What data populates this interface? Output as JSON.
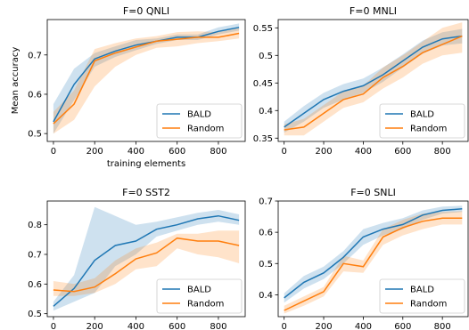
{
  "chart_data": [
    {
      "type": "line",
      "title": "F=0 QNLI",
      "xlabel": "training elements",
      "ylabel": "Mean accuracy",
      "xlim": [
        -30,
        930
      ],
      "ylim": [
        0.48,
        0.79
      ],
      "xticks": [
        0,
        200,
        400,
        600,
        800
      ],
      "yticks": [
        0.5,
        0.6,
        0.7
      ],
      "legend": "lower-right",
      "series": [
        {
          "name": "BALD",
          "color": "#1f77b4",
          "x": [
            0,
            100,
            200,
            300,
            400,
            500,
            600,
            700,
            800,
            900
          ],
          "y": [
            0.53,
            0.625,
            0.69,
            0.71,
            0.725,
            0.735,
            0.745,
            0.745,
            0.76,
            0.77
          ],
          "lower": [
            0.5,
            0.585,
            0.67,
            0.695,
            0.712,
            0.728,
            0.738,
            0.738,
            0.752,
            0.762
          ],
          "upper": [
            0.575,
            0.665,
            0.705,
            0.722,
            0.738,
            0.742,
            0.752,
            0.752,
            0.77,
            0.78
          ]
        },
        {
          "name": "Random",
          "color": "#ff7f0e",
          "x": [
            0,
            100,
            200,
            300,
            400,
            500,
            600,
            700,
            800,
            900
          ],
          "y": [
            0.525,
            0.575,
            0.685,
            0.705,
            0.72,
            0.735,
            0.74,
            0.745,
            0.745,
            0.755
          ],
          "lower": [
            0.5,
            0.535,
            0.62,
            0.67,
            0.7,
            0.718,
            0.722,
            0.73,
            0.735,
            0.742
          ],
          "upper": [
            0.555,
            0.61,
            0.715,
            0.73,
            0.742,
            0.748,
            0.758,
            0.76,
            0.758,
            0.768
          ]
        }
      ]
    },
    {
      "type": "line",
      "title": "F=0 MNLI",
      "xlabel": "",
      "ylabel": "",
      "xlim": [
        -30,
        930
      ],
      "ylim": [
        0.344,
        0.565
      ],
      "xticks": [
        0,
        200,
        400,
        600,
        800
      ],
      "yticks": [
        0.35,
        0.4,
        0.45,
        0.5,
        0.55
      ],
      "legend": "lower-right",
      "series": [
        {
          "name": "BALD",
          "color": "#1f77b4",
          "x": [
            0,
            100,
            200,
            300,
            400,
            500,
            600,
            700,
            800,
            900
          ],
          "y": [
            0.37,
            0.395,
            0.42,
            0.435,
            0.445,
            0.465,
            0.49,
            0.515,
            0.53,
            0.535
          ],
          "lower": [
            0.36,
            0.38,
            0.405,
            0.42,
            0.432,
            0.452,
            0.478,
            0.503,
            0.518,
            0.522
          ],
          "upper": [
            0.38,
            0.408,
            0.432,
            0.448,
            0.458,
            0.478,
            0.502,
            0.527,
            0.542,
            0.548
          ]
        },
        {
          "name": "Random",
          "color": "#ff7f0e",
          "x": [
            0,
            100,
            200,
            300,
            400,
            500,
            600,
            700,
            800,
            900
          ],
          "y": [
            0.365,
            0.37,
            0.395,
            0.42,
            0.43,
            0.46,
            0.48,
            0.505,
            0.52,
            0.535
          ],
          "lower": [
            0.355,
            0.355,
            0.38,
            0.405,
            0.415,
            0.44,
            0.46,
            0.485,
            0.5,
            0.505
          ],
          "upper": [
            0.375,
            0.385,
            0.41,
            0.435,
            0.445,
            0.478,
            0.5,
            0.525,
            0.55,
            0.56
          ]
        }
      ]
    },
    {
      "type": "line",
      "title": "F=0 SST2",
      "xlabel": "",
      "ylabel": "",
      "xlim": [
        -30,
        930
      ],
      "ylim": [
        0.49,
        0.88
      ],
      "xticks": [
        0,
        200,
        400,
        600,
        800
      ],
      "yticks": [
        0.5,
        0.6,
        0.7,
        0.8
      ],
      "legend": "lower-right",
      "series": [
        {
          "name": "BALD",
          "color": "#1f77b4",
          "x": [
            0,
            100,
            200,
            300,
            400,
            500,
            600,
            700,
            800,
            900
          ],
          "y": [
            0.525,
            0.585,
            0.68,
            0.73,
            0.745,
            0.785,
            0.8,
            0.82,
            0.83,
            0.815
          ],
          "lower": [
            0.51,
            0.54,
            0.57,
            0.66,
            0.7,
            0.76,
            0.78,
            0.8,
            0.81,
            0.8
          ],
          "upper": [
            0.54,
            0.63,
            0.86,
            0.83,
            0.8,
            0.81,
            0.825,
            0.84,
            0.85,
            0.835
          ]
        },
        {
          "name": "Random",
          "color": "#ff7f0e",
          "x": [
            0,
            100,
            200,
            300,
            400,
            500,
            600,
            700,
            800,
            900
          ],
          "y": [
            0.58,
            0.575,
            0.59,
            0.635,
            0.685,
            0.705,
            0.755,
            0.745,
            0.745,
            0.73
          ],
          "lower": [
            0.56,
            0.56,
            0.57,
            0.6,
            0.65,
            0.66,
            0.72,
            0.7,
            0.69,
            0.67
          ],
          "upper": [
            0.61,
            0.6,
            0.62,
            0.68,
            0.72,
            0.74,
            0.77,
            0.77,
            0.78,
            0.78
          ]
        }
      ]
    },
    {
      "type": "line",
      "title": "F=0 SNLI",
      "xlabel": "",
      "ylabel": "",
      "xlim": [
        -30,
        930
      ],
      "ylim": [
        0.33,
        0.7
      ],
      "xticks": [
        0,
        200,
        400,
        600,
        800
      ],
      "yticks": [
        0.4,
        0.5,
        0.6,
        0.7
      ],
      "legend": "lower-right",
      "series": [
        {
          "name": "BALD",
          "color": "#1f77b4",
          "x": [
            0,
            100,
            200,
            300,
            400,
            500,
            600,
            700,
            800,
            900
          ],
          "y": [
            0.39,
            0.44,
            0.47,
            0.52,
            0.585,
            0.61,
            0.625,
            0.655,
            0.67,
            0.675
          ],
          "lower": [
            0.375,
            0.42,
            0.45,
            0.5,
            0.56,
            0.59,
            0.61,
            0.64,
            0.66,
            0.665
          ],
          "upper": [
            0.405,
            0.46,
            0.49,
            0.54,
            0.61,
            0.63,
            0.645,
            0.67,
            0.682,
            0.685
          ]
        },
        {
          "name": "Random",
          "color": "#ff7f0e",
          "x": [
            0,
            100,
            200,
            300,
            400,
            500,
            600,
            700,
            800,
            900
          ],
          "y": [
            0.35,
            0.38,
            0.41,
            0.5,
            0.49,
            0.585,
            0.615,
            0.635,
            0.645,
            0.645
          ],
          "lower": [
            0.34,
            0.365,
            0.395,
            0.475,
            0.47,
            0.56,
            0.59,
            0.61,
            0.625,
            0.625
          ],
          "upper": [
            0.365,
            0.395,
            0.425,
            0.525,
            0.51,
            0.61,
            0.64,
            0.66,
            0.665,
            0.668
          ]
        }
      ]
    }
  ]
}
